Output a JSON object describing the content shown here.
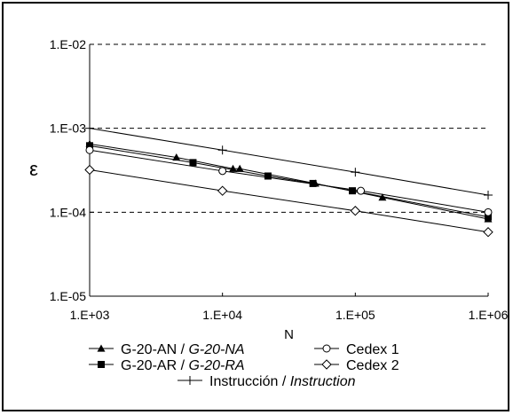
{
  "chart_data": {
    "type": "line",
    "title": "",
    "xlabel": "N",
    "ylabel": "ε",
    "xscale": "log",
    "yscale": "log",
    "xlim": [
      1000,
      1000000
    ],
    "ylim": [
      1e-05,
      0.01
    ],
    "x_ticks": [
      "1.E+03",
      "1.E+04",
      "1.E+05",
      "1.E+06"
    ],
    "y_ticks": [
      "1.E-02",
      "1.E-03",
      "1.E-04",
      "1.E-05"
    ],
    "grid": "horizontal dashed",
    "legend_position": "bottom",
    "series": [
      {
        "name": "G-20-AN / ",
        "name_italic": "G-20-NA",
        "marker": "triangle",
        "points": [
          [
            1000,
            0.00065
          ],
          [
            4500,
            0.00045
          ],
          [
            12000,
            0.00033
          ],
          [
            13500,
            0.00033
          ],
          [
            50000,
            0.00022
          ],
          [
            160000,
            0.00015
          ],
          [
            1000000,
            8.3e-05
          ]
        ]
      },
      {
        "name": "G-20-AR / ",
        "name_italic": "G-20-RA",
        "marker": "square",
        "points": [
          [
            1000,
            0.00062
          ],
          [
            6000,
            0.00039
          ],
          [
            22000,
            0.00027
          ],
          [
            48000,
            0.00022
          ],
          [
            95000,
            0.00018
          ],
          [
            1000000,
            8.8e-05
          ]
        ]
      },
      {
        "name": "Cedex 1",
        "marker": "circle",
        "points": [
          [
            1000,
            0.00055
          ],
          [
            10000,
            0.00031
          ],
          [
            110000,
            0.00018
          ],
          [
            1000000,
            0.0001
          ]
        ]
      },
      {
        "name": "Cedex 2",
        "marker": "diamond",
        "points": [
          [
            1000,
            0.00032
          ],
          [
            10000,
            0.00018
          ],
          [
            100000,
            0.000104
          ],
          [
            1000000,
            5.8e-05
          ]
        ]
      },
      {
        "name": "Instrucción / ",
        "name_italic": "Instruction",
        "marker": "plus",
        "points": [
          [
            1000,
            0.001
          ],
          [
            10000,
            0.00055
          ],
          [
            100000,
            0.0003
          ],
          [
            1000000,
            0.00016
          ]
        ]
      }
    ],
    "colors": {
      "line": "#000000",
      "grid": "#000000"
    }
  }
}
